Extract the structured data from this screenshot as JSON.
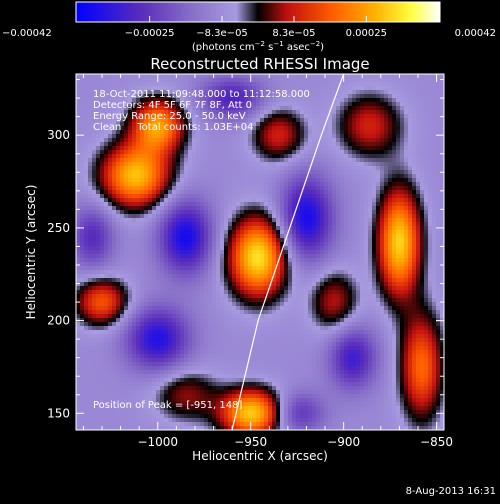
{
  "chart_data": {
    "type": "heatmap",
    "title": "Reconstructed RHESSI Image",
    "xlabel": "Heliocentric X (arcsec)",
    "ylabel": "Heliocentric Y (arcsec)",
    "xlim": [
      -1044,
      -846
    ],
    "ylim": [
      141,
      333
    ],
    "x_ticks": [
      -1000,
      -950,
      -900,
      -850
    ],
    "x_tick_labels": [
      "−1000",
      "−950",
      "−900",
      "−850"
    ],
    "y_ticks": [
      150,
      200,
      250,
      300
    ],
    "y_tick_labels": [
      "150",
      "200",
      "250",
      "300"
    ],
    "colorbar": {
      "range": [
        -0.00042,
        0.00042
      ],
      "ticks": [
        -0.00042,
        -0.00025,
        -8.3e-05,
        8.3e-05,
        0.00025,
        0.00042
      ],
      "tick_labels": [
        "−0.00042",
        "−0.00025",
        "−8.3e−05",
        "8.3e−05",
        "0.00025",
        "0.00042"
      ],
      "units_prefix": "(photons cm",
      "units_exp1": "−2",
      "units_mid": " s",
      "units_exp2": "−1",
      "units_mid2": " asec",
      "units_exp3": "−2",
      "units_suffix": ")"
    },
    "info_lines": [
      "18-Oct-2011 11:09:48.000 to 11:12:58.000",
      "Detectors: 4F 5F 6F 7F 8F, Att 0",
      "Energy Range: 25.0 - 50.0 keV",
      "Clean     Total counts: 1.03E+04"
    ],
    "peak_label": "Position of Peak = [-951, 148]",
    "sources": [
      {
        "x": -946,
        "y": 234,
        "amp": 1.0,
        "sx": 11,
        "sy": 15
      },
      {
        "x": -949,
        "y": 150,
        "amp": 0.95,
        "sx": 12,
        "sy": 9
      },
      {
        "x": -870,
        "y": 242,
        "amp": 0.95,
        "sx": 8,
        "sy": 20
      },
      {
        "x": -1012,
        "y": 278,
        "amp": 0.9,
        "sx": 13,
        "sy": 12
      },
      {
        "x": -1000,
        "y": 305,
        "amp": 0.8,
        "sx": 10,
        "sy": 10
      },
      {
        "x": -1030,
        "y": 210,
        "amp": 0.6,
        "sx": 10,
        "sy": 9
      },
      {
        "x": -858,
        "y": 175,
        "amp": 0.65,
        "sx": 8,
        "sy": 20
      },
      {
        "x": -886,
        "y": 305,
        "amp": 0.45,
        "sx": 12,
        "sy": 12
      },
      {
        "x": -935,
        "y": 300,
        "amp": 0.45,
        "sx": 10,
        "sy": 10
      },
      {
        "x": -905,
        "y": 210,
        "amp": 0.4,
        "sx": 9,
        "sy": 12
      },
      {
        "x": -985,
        "y": 160,
        "amp": 0.35,
        "sx": 12,
        "sy": 10
      },
      {
        "x": -985,
        "y": 245,
        "amp": -0.7,
        "sx": 10,
        "sy": 14
      },
      {
        "x": -920,
        "y": 255,
        "amp": -0.7,
        "sx": 10,
        "sy": 16
      },
      {
        "x": -1000,
        "y": 190,
        "amp": -0.65,
        "sx": 12,
        "sy": 12
      },
      {
        "x": -895,
        "y": 180,
        "amp": -0.55,
        "sx": 9,
        "sy": 12
      },
      {
        "x": -960,
        "y": 320,
        "amp": -0.5,
        "sx": 12,
        "sy": 8
      },
      {
        "x": -1035,
        "y": 245,
        "amp": -0.45,
        "sx": 8,
        "sy": 12
      },
      {
        "x": -925,
        "y": 150,
        "amp": -0.45,
        "sx": 10,
        "sy": 8
      }
    ],
    "limb": [
      [
        -960,
        141
      ],
      [
        -946,
        200
      ],
      [
        -929,
        250
      ],
      [
        -912,
        300
      ],
      [
        -900,
        333
      ]
    ]
  },
  "footer": {
    "date": "8-Aug-2013 16:31"
  },
  "colors": {
    "background": "#000000",
    "text": "#ffffff",
    "colormap": [
      "#0000ff",
      "#5a2dbb",
      "#8870c8",
      "#a89be0",
      "#000000",
      "#c01010",
      "#ff5a00",
      "#ffb000",
      "#ffff40",
      "#ffffff"
    ]
  }
}
